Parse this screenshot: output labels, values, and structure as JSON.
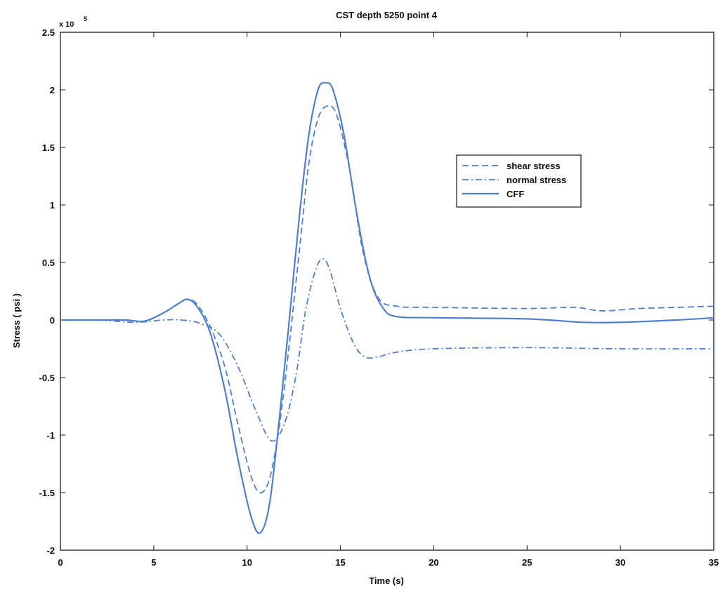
{
  "chart_data": {
    "type": "line",
    "title": "CST depth 5250 point 4",
    "xlabel": "Time (s)",
    "ylabel": "Stress ( psi )",
    "y_exponent_label": "x 10",
    "y_exponent_power": "5",
    "xlim": [
      0,
      35
    ],
    "ylim": [
      -2,
      2.5
    ],
    "y_units_multiplier": 100000,
    "x_ticks": [
      0,
      5,
      10,
      15,
      20,
      25,
      30,
      35
    ],
    "x_tick_labels": [
      "0",
      "5",
      "10",
      "15",
      "20",
      "25",
      "30",
      "35"
    ],
    "y_ticks": [
      -2,
      -1.5,
      -1,
      -0.5,
      0,
      0.5,
      1,
      1.5,
      2,
      2.5
    ],
    "y_tick_labels": [
      "-2",
      "-1.5",
      "-1",
      "-0.5",
      "0",
      "0.5",
      "1",
      "1.5",
      "2",
      "2.5"
    ],
    "grid": false,
    "legend_position": "right",
    "color": "#4f7fcf",
    "series": [
      {
        "name": "shear stress",
        "style": "dashed",
        "x": [
          0,
          2,
          3.5,
          4.5,
          5.5,
          6.3,
          6.8,
          7.3,
          8,
          8.8,
          9.5,
          10.2,
          10.7,
          11.2,
          11.7,
          12.2,
          12.8,
          13.3,
          13.8,
          14.3,
          14.8,
          15.5,
          16.2,
          17,
          18,
          20,
          25,
          27.5,
          29,
          31,
          33,
          35
        ],
        "y": [
          0,
          0,
          0,
          -0.01,
          0.06,
          0.14,
          0.18,
          0.14,
          -0.05,
          -0.4,
          -0.9,
          -1.35,
          -1.5,
          -1.38,
          -0.95,
          -0.3,
          0.6,
          1.35,
          1.75,
          1.86,
          1.78,
          1.3,
          0.6,
          0.2,
          0.12,
          0.11,
          0.1,
          0.11,
          0.08,
          0.1,
          0.11,
          0.12
        ]
      },
      {
        "name": "normal stress",
        "style": "dash-dot",
        "x": [
          0,
          2,
          4,
          5.5,
          6.5,
          7.5,
          8.5,
          9.5,
          10.5,
          11.3,
          12,
          12.6,
          13.1,
          13.6,
          14,
          14.4,
          15,
          15.7,
          16.3,
          17,
          18,
          20,
          25,
          30,
          35
        ],
        "y": [
          0,
          0,
          -0.02,
          0,
          0,
          -0.03,
          -0.12,
          -0.4,
          -0.8,
          -1.05,
          -0.9,
          -0.5,
          0.05,
          0.4,
          0.53,
          0.45,
          0.1,
          -0.2,
          -0.32,
          -0.32,
          -0.28,
          -0.25,
          -0.24,
          -0.25,
          -0.25
        ]
      },
      {
        "name": "CFF",
        "style": "solid",
        "x": [
          0,
          2,
          3.5,
          4.5,
          5.5,
          6.3,
          6.8,
          7.3,
          8,
          8.8,
          9.5,
          10.2,
          10.7,
          11.2,
          11.7,
          12.2,
          12.8,
          13.3,
          13.8,
          14.2,
          14.6,
          15.2,
          15.9,
          16.6,
          17.3,
          18,
          20,
          25,
          28,
          30,
          33,
          35
        ],
        "y": [
          0,
          0,
          0,
          -0.01,
          0.06,
          0.14,
          0.18,
          0.12,
          -0.1,
          -0.6,
          -1.2,
          -1.7,
          -1.85,
          -1.6,
          -0.9,
          -0.1,
          0.9,
          1.6,
          2.0,
          2.06,
          2.0,
          1.6,
          0.9,
          0.35,
          0.1,
          0.03,
          0.02,
          0.01,
          -0.02,
          -0.02,
          0,
          0.02
        ]
      }
    ]
  }
}
